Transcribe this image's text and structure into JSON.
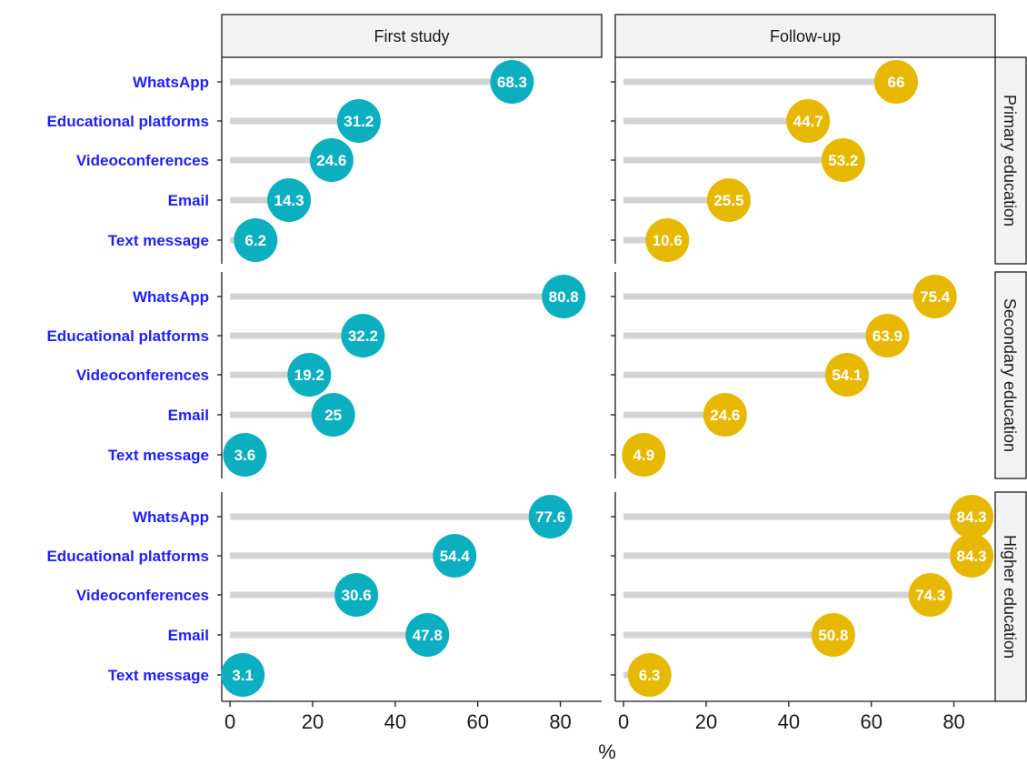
{
  "chart_data": {
    "type": "lollipop",
    "xlabel": "%",
    "xlim": [
      -2,
      90
    ],
    "xticks": [
      0,
      20,
      40,
      60,
      80
    ],
    "categories": [
      "WhatsApp",
      "Educational platforms",
      "Videoconferences",
      "Email",
      "Text message"
    ],
    "columns": [
      "First study",
      "Follow-up"
    ],
    "rows": [
      "Primary education",
      "Secondary education",
      "Higher education"
    ],
    "colors": {
      "First study": "#0BAFBF",
      "Follow-up": "#E7B800",
      "stem": "#D3D3D3",
      "category_label": "#1F1FFF",
      "strip_fill": "#F2F2F2"
    },
    "values": {
      "First study": {
        "Primary education": [
          68.3,
          31.2,
          24.6,
          14.3,
          6.2
        ],
        "Secondary education": [
          80.8,
          32.2,
          19.2,
          25,
          3.6
        ],
        "Higher education": [
          77.6,
          54.4,
          30.6,
          47.8,
          3.1
        ]
      },
      "Follow-up": {
        "Primary education": [
          66,
          44.7,
          53.2,
          25.5,
          10.6
        ],
        "Secondary education": [
          75.4,
          63.9,
          54.1,
          24.6,
          4.9
        ],
        "Higher education": [
          84.3,
          84.3,
          74.3,
          50.8,
          6.3
        ]
      }
    }
  }
}
